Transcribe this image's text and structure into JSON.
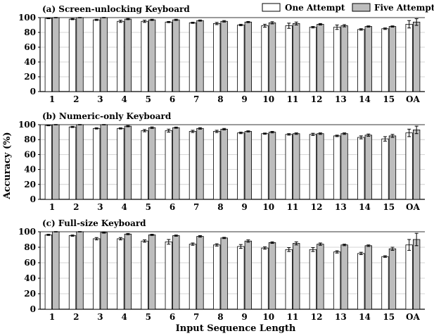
{
  "chart_data": {
    "type": "bar",
    "ylabel": "Accuracy (%)",
    "xlabel": "Input Sequence Length",
    "categories": [
      "1",
      "2",
      "3",
      "4",
      "5",
      "6",
      "7",
      "8",
      "9",
      "10",
      "11",
      "12",
      "13",
      "14",
      "15",
      "OA"
    ],
    "yticks": [
      0,
      20,
      40,
      60,
      80,
      100
    ],
    "ylim": [
      0,
      100
    ],
    "grid": "horizontal",
    "legend_position": "top-right",
    "series_colors": {
      "one_attempt": "#ffffff",
      "five_attempts": "#bdbdbd"
    },
    "legend": [
      "One Attempt",
      "Five Attempts"
    ],
    "panels": [
      {
        "title": "(a) Screen-unlocking Keyboard",
        "series": [
          {
            "name": "One Attempt",
            "values": [
              99,
              98,
              97,
              95,
              95,
              94,
              93,
              92,
              90,
              89,
              89,
              87,
              87,
              84,
              85,
              91
            ],
            "errors": [
              0.5,
              0.8,
              0.8,
              1.5,
              1.5,
              0.8,
              0.8,
              1.5,
              1.0,
              2.0,
              3.5,
              1.0,
              3.0,
              1.0,
              1.0,
              5.0
            ]
          },
          {
            "name": "Five Attempts",
            "values": [
              100,
              100,
              100,
              98,
              97,
              97,
              96,
              95,
              94,
              93,
              92,
              91,
              89,
              88,
              88,
              94
            ],
            "errors": [
              0.3,
              0.3,
              0.3,
              0.8,
              0.8,
              0.8,
              0.8,
              1.0,
              0.8,
              1.5,
              2.0,
              1.0,
              1.5,
              0.8,
              0.8,
              4.5
            ]
          }
        ]
      },
      {
        "title": "(b) Numeric-only Keyboard",
        "series": [
          {
            "name": "One Attempt",
            "values": [
              99,
              97,
              95,
              95,
              92,
              92,
              91,
              91,
              89,
              88,
              87,
              87,
              85,
              83,
              81,
              89
            ],
            "errors": [
              0.5,
              0.8,
              0.8,
              0.8,
              1.5,
              2.0,
              1.5,
              1.5,
              1.0,
              0.8,
              1.0,
              1.5,
              1.0,
              2.0,
              3.0,
              5.0
            ]
          },
          {
            "name": "Five Attempts",
            "values": [
              100,
              100,
              100,
              98,
              96,
              96,
              95,
              94,
              91,
              90,
              88,
              88,
              88,
              86,
              85,
              93
            ],
            "errors": [
              0.3,
              0.3,
              0.3,
              0.8,
              1.0,
              0.8,
              1.0,
              1.0,
              0.8,
              1.0,
              1.0,
              1.0,
              1.0,
              1.5,
              2.0,
              5.0
            ]
          }
        ]
      },
      {
        "title": "(c) Full-size Keyboard",
        "series": [
          {
            "name": "One Attempt",
            "values": [
              96,
              95,
              91,
              91,
              88,
              87,
              84,
              83,
              81,
              79,
              77,
              77,
              74,
              72,
              68,
              83
            ],
            "errors": [
              0.8,
              0.8,
              1.5,
              1.5,
              1.5,
              3.0,
              1.5,
              1.5,
              2.5,
              1.5,
              2.5,
              2.5,
              1.5,
              1.5,
              1.0,
              7.0
            ]
          },
          {
            "name": "Five Attempts",
            "values": [
              100,
              100,
              99,
              97,
              96,
              95,
              94,
              92,
              88,
              86,
              85,
              84,
              83,
              82,
              78,
              90
            ],
            "errors": [
              0.3,
              0.3,
              0.8,
              0.8,
              0.8,
              0.8,
              1.0,
              0.8,
              1.5,
              1.0,
              2.0,
              1.5,
              1.0,
              1.0,
              2.0,
              8.0
            ]
          }
        ]
      }
    ]
  }
}
